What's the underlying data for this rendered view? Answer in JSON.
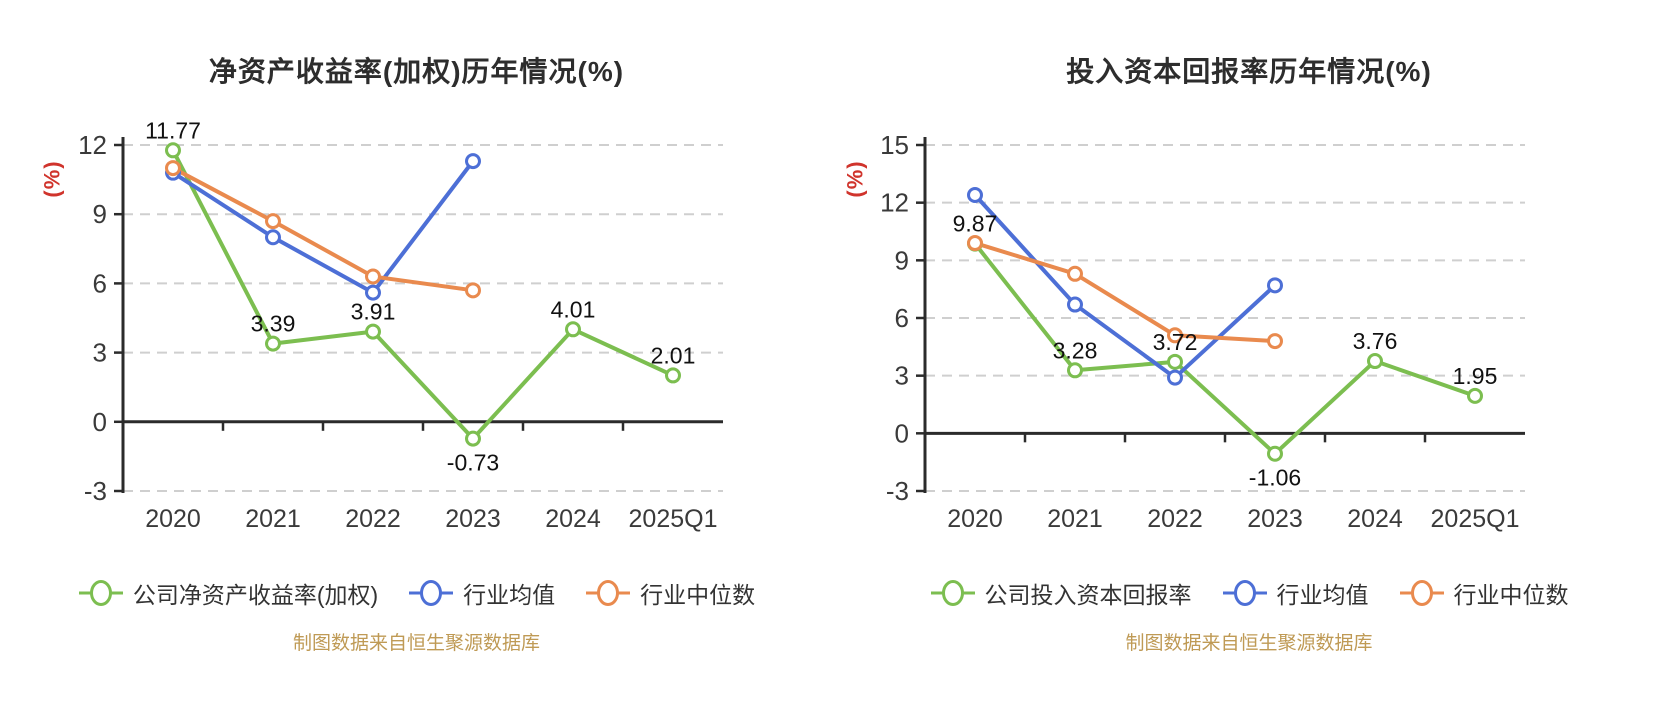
{
  "colors": {
    "company_series_green": "#7CBE50",
    "industry_mean_blue": "#4D6FD6",
    "industry_median_orange": "#E98A4E",
    "y_axis_unit_red": "#D0342C",
    "footer_gold": "#BF9A55",
    "axis_line": "#2b2b2b",
    "gridline": "#cfcfcf",
    "tick_label": "#3a3a3a",
    "data_label": "#111111"
  },
  "chart_data": [
    {
      "type": "line",
      "title": "净资产收益率(加权)历年情况(%)",
      "y_axis_label": "(%)",
      "footer": "制图数据来自恒生聚源数据库",
      "categories": [
        "2020",
        "2021",
        "2022",
        "2023",
        "2024",
        "2025Q1"
      ],
      "y_ticks": [
        12,
        9,
        6,
        3,
        0,
        -3
      ],
      "ylim": [
        -3,
        12
      ],
      "grid": "dashed-horizontal",
      "legend_position": "bottom",
      "series": [
        {
          "name": "公司净资产收益率(加权)",
          "color": "#7CBE50",
          "labeled": true,
          "values": [
            11.77,
            3.39,
            3.91,
            -0.73,
            4.01,
            2.01
          ]
        },
        {
          "name": "行业均值",
          "color": "#4D6FD6",
          "labeled": false,
          "values": [
            10.8,
            8.0,
            5.6,
            11.3
          ]
        },
        {
          "name": "行业中位数",
          "color": "#E98A4E",
          "labeled": false,
          "values": [
            11.0,
            8.7,
            6.3,
            5.7
          ]
        }
      ]
    },
    {
      "type": "line",
      "title": "投入资本回报率历年情况(%)",
      "y_axis_label": "(%)",
      "footer": "制图数据来自恒生聚源数据库",
      "categories": [
        "2020",
        "2021",
        "2022",
        "2023",
        "2024",
        "2025Q1"
      ],
      "y_ticks": [
        15,
        12,
        9,
        6,
        3,
        0,
        -3
      ],
      "ylim": [
        -3,
        15
      ],
      "grid": "dashed-horizontal",
      "legend_position": "bottom",
      "series": [
        {
          "name": "公司投入资本回报率",
          "color": "#7CBE50",
          "labeled": true,
          "values": [
            9.87,
            3.28,
            3.72,
            -1.06,
            3.76,
            1.95
          ]
        },
        {
          "name": "行业均值",
          "color": "#4D6FD6",
          "labeled": false,
          "values": [
            12.4,
            6.7,
            2.9,
            7.7
          ]
        },
        {
          "name": "行业中位数",
          "color": "#E98A4E",
          "labeled": false,
          "values": [
            9.9,
            8.3,
            5.1,
            4.8
          ]
        }
      ]
    }
  ]
}
